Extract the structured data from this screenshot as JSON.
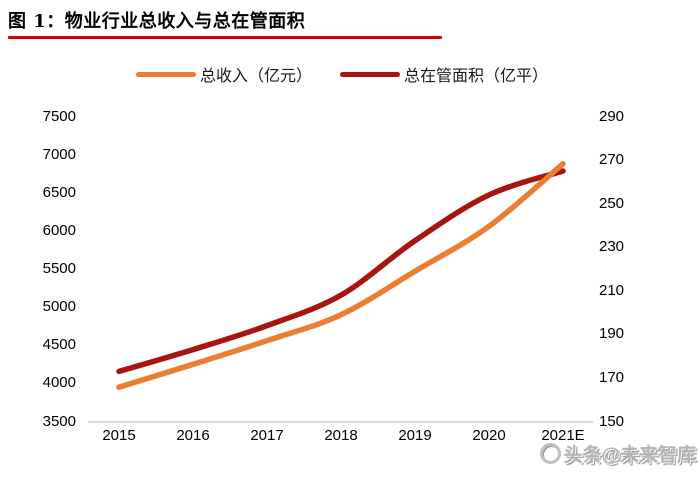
{
  "header": {
    "title": "图  1：物业行业总收入与总在管面积"
  },
  "legend": {
    "items": [
      {
        "label": "总收入（亿元）",
        "color": "#ED7D31"
      },
      {
        "label": "总在管面积（亿平）",
        "color": "#A81410"
      }
    ]
  },
  "chart_data": {
    "type": "line",
    "title": "物业行业总收入与总在管面积",
    "categories": [
      "2015",
      "2016",
      "2017",
      "2018",
      "2019",
      "2020",
      "2021E"
    ],
    "series": [
      {
        "name": "总收入（亿元）",
        "axis": "left",
        "color": "#ED7D31",
        "values": [
          3950,
          4250,
          4560,
          4900,
          5470,
          6060,
          6880
        ]
      },
      {
        "name": "总在管面积（亿平）",
        "axis": "right",
        "color": "#A81410",
        "values": [
          173,
          183,
          194,
          208,
          233,
          254,
          265
        ]
      }
    ],
    "left_axis": {
      "min": 3500,
      "max": 7500,
      "ticks": [
        7500,
        7000,
        6500,
        6000,
        5500,
        5000,
        4500,
        4000,
        3500
      ]
    },
    "right_axis": {
      "min": 150,
      "max": 290,
      "ticks": [
        290,
        270,
        250,
        230,
        210,
        190,
        170,
        150
      ]
    },
    "grid": false,
    "legend_position": "top"
  },
  "colors": {
    "title_rule": "#D40000",
    "axis_line": "#D9D9D9"
  },
  "watermark": {
    "text": "头条@未来智库"
  }
}
